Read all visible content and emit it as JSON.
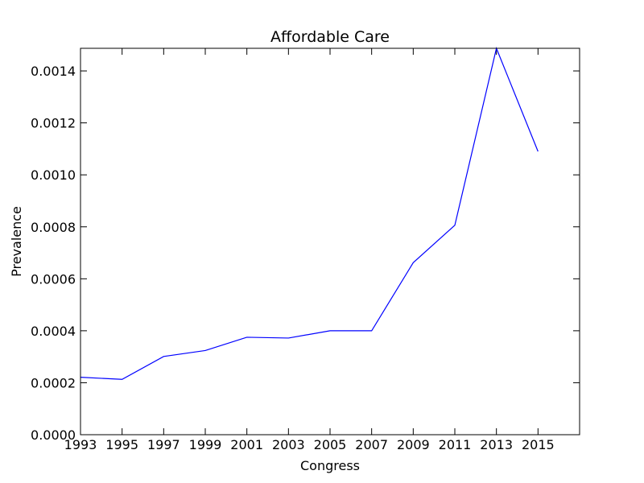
{
  "chart_data": {
    "type": "line",
    "title": "Affordable Care",
    "xlabel": "Congress",
    "ylabel": "Prevalence",
    "x": [
      1993,
      1995,
      1997,
      1999,
      2001,
      2003,
      2005,
      2007,
      2009,
      2011,
      2013,
      2015
    ],
    "series": [
      {
        "values": [
          0.000221,
          0.000213,
          0.000301,
          0.000324,
          0.000375,
          0.000372,
          0.0004,
          0.0004,
          0.000662,
          0.000806,
          0.001487,
          0.00109
        ],
        "color": "#0000ff"
      }
    ],
    "xlim": [
      1993,
      2017
    ],
    "ylim": [
      0,
      0.001487
    ],
    "xticks": [
      "1993",
      "1995",
      "1997",
      "1999",
      "2001",
      "2003",
      "2005",
      "2007",
      "2009",
      "2011",
      "2013",
      "2015"
    ],
    "yticks": [
      "0.0000",
      "0.0002",
      "0.0004",
      "0.0006",
      "0.0008",
      "0.0010",
      "0.0012",
      "0.0014"
    ],
    "grid": false,
    "legend": "none"
  }
}
